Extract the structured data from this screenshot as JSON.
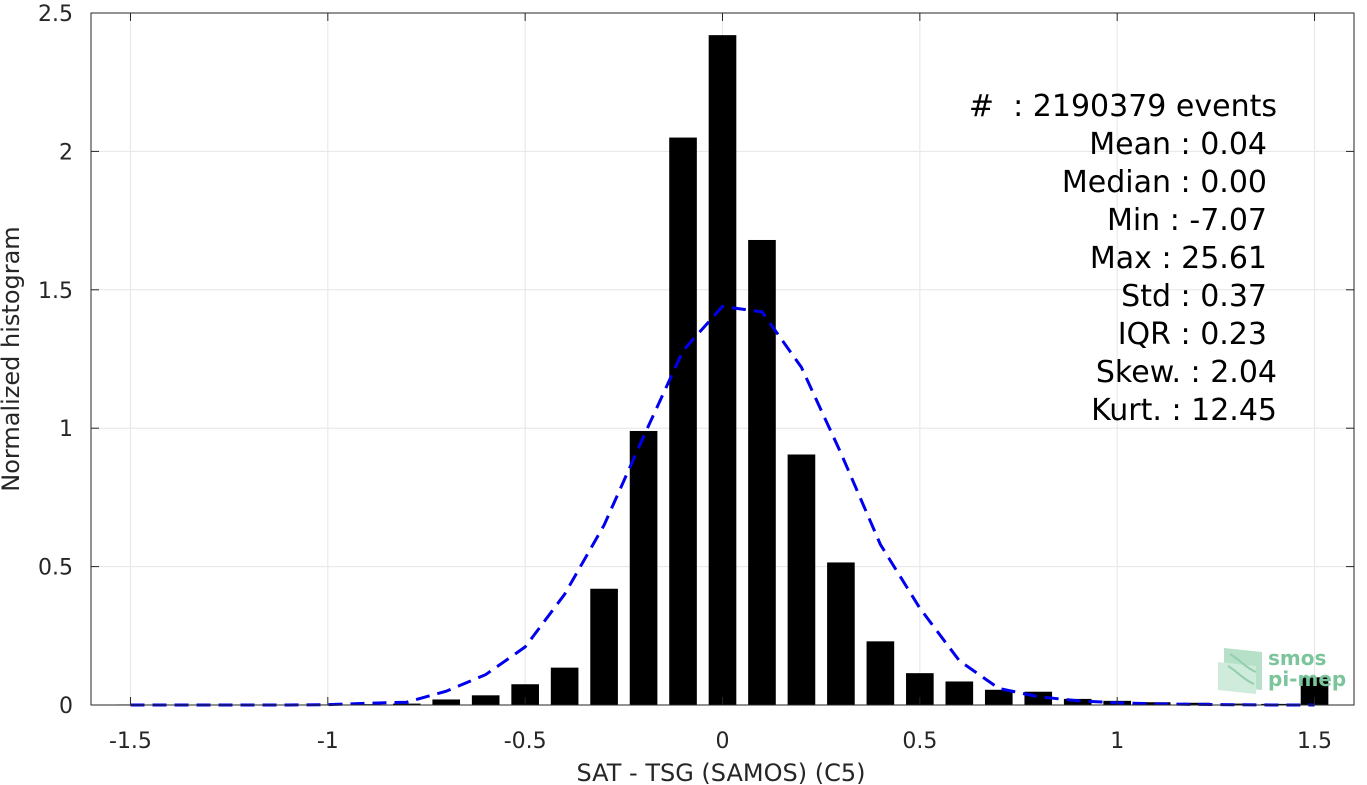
{
  "chart_data": {
    "type": "bar",
    "xlabel": "SAT - TSG (SAMOS) (C5)",
    "ylabel": "Normalized histogram",
    "xlim": [
      -1.6,
      1.6
    ],
    "ylim": [
      0,
      2.5
    ],
    "xticks": [
      -1.5,
      -1,
      -0.5,
      0,
      0.5,
      1,
      1.5
    ],
    "xtick_labels": [
      "-1.5",
      "-1",
      "-0.5",
      "0",
      "0.5",
      "1",
      "1.5"
    ],
    "yticks": [
      0,
      0.5,
      1,
      1.5,
      2,
      2.5
    ],
    "ytick_labels": [
      "0",
      "0.5",
      "1",
      "1.5",
      "2",
      "2.5"
    ],
    "grid": true,
    "bar_color": "#000000",
    "bar_width": 0.07,
    "bars": {
      "x": [
        -1.5,
        -1.4,
        -1.3,
        -1.2,
        -1.1,
        -1.0,
        -0.9,
        -0.8,
        -0.7,
        -0.6,
        -0.5,
        -0.4,
        -0.3,
        -0.2,
        -0.1,
        0.0,
        0.1,
        0.2,
        0.3,
        0.4,
        0.5,
        0.6,
        0.7,
        0.8,
        0.9,
        1.0,
        1.1,
        1.2,
        1.3,
        1.4,
        1.5
      ],
      "values": [
        0.002,
        0.001,
        0.001,
        0.001,
        0.001,
        0.002,
        0.003,
        0.005,
        0.02,
        0.035,
        0.075,
        0.135,
        0.42,
        0.99,
        2.05,
        2.42,
        1.68,
        0.905,
        0.515,
        0.23,
        0.115,
        0.085,
        0.055,
        0.048,
        0.022,
        0.015,
        0.01,
        0.008,
        0.005,
        0.004,
        0.1
      ]
    },
    "fit_line": {
      "style": "dashed",
      "color": "#0000ee",
      "x": [
        -1.5,
        -1.4,
        -1.3,
        -1.2,
        -1.1,
        -1.0,
        -0.9,
        -0.8,
        -0.7,
        -0.6,
        -0.5,
        -0.4,
        -0.3,
        -0.2,
        -0.1,
        0.0,
        0.1,
        0.2,
        0.3,
        0.4,
        0.5,
        0.6,
        0.7,
        0.8,
        0.9,
        1.0,
        1.1,
        1.2,
        1.3,
        1.4,
        1.5
      ],
      "y": [
        0.0,
        0.0,
        0.0,
        0.0,
        0.0,
        0.001,
        0.006,
        0.01,
        0.05,
        0.11,
        0.21,
        0.4,
        0.65,
        0.97,
        1.28,
        1.44,
        1.42,
        1.22,
        0.91,
        0.58,
        0.35,
        0.16,
        0.06,
        0.03,
        0.015,
        0.008,
        0.004,
        0.002,
        0.001,
        0.0,
        0.0
      ]
    }
  },
  "stats": {
    "lines": [
      "#  : 2190379 events",
      "Mean : 0.04",
      "Median : 0.00",
      "Min : -7.07",
      "Max : 25.61",
      "Std : 0.37",
      "IQR : 0.23",
      "Skew. : 2.04",
      "Kurt. : 12.45"
    ]
  },
  "logo": {
    "line1": "smos",
    "line2": "pi-mep",
    "icon": "smos-pimep-logo-icon",
    "color": "#7cc49b"
  }
}
